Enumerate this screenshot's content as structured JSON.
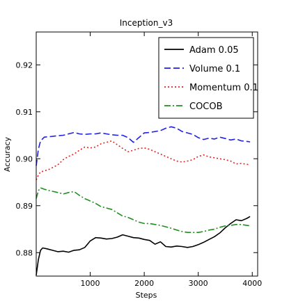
{
  "chart_data": {
    "type": "line",
    "title": "Inception_v3",
    "xlabel": "Steps",
    "ylabel": "Accuracy",
    "xlim": [
      0,
      4100
    ],
    "ylim": [
      0.875,
      0.927
    ],
    "x_ticks": [
      1000,
      2000,
      3000,
      4000
    ],
    "x_tick_labels": [
      "1000",
      "2000",
      "3000",
      "4000"
    ],
    "y_ticks": [
      0.88,
      0.89,
      0.9,
      0.91,
      0.92
    ],
    "y_tick_labels": [
      "0.88",
      "0.89",
      "0.90",
      "0.91",
      "0.92"
    ],
    "grid": false,
    "legend_position": "top-right",
    "series": [
      {
        "name": "Adam 0.05",
        "color": "#000000",
        "style": "solid",
        "x": [
          0,
          40,
          80,
          120,
          200,
          300,
          400,
          500,
          600,
          700,
          800,
          900,
          1000,
          1100,
          1200,
          1300,
          1400,
          1500,
          1600,
          1700,
          1800,
          1900,
          2000,
          2100,
          2200,
          2300,
          2400,
          2500,
          2600,
          2700,
          2800,
          2900,
          3000,
          3100,
          3200,
          3300,
          3400,
          3500,
          3600,
          3700,
          3800,
          3900,
          3960
        ],
        "y": [
          0.8752,
          0.8785,
          0.8805,
          0.881,
          0.8808,
          0.8805,
          0.8802,
          0.8803,
          0.8801,
          0.8805,
          0.8806,
          0.8811,
          0.8825,
          0.8832,
          0.8831,
          0.8829,
          0.883,
          0.8833,
          0.8838,
          0.8835,
          0.8832,
          0.8831,
          0.8828,
          0.8826,
          0.8818,
          0.8823,
          0.8813,
          0.8812,
          0.8814,
          0.8813,
          0.8811,
          0.8813,
          0.8817,
          0.8822,
          0.8828,
          0.8834,
          0.8842,
          0.8853,
          0.8862,
          0.887,
          0.8868,
          0.8873,
          0.8877
        ]
      },
      {
        "name": "Volume 0.1",
        "color": "#1f1fe6",
        "style": "dashed",
        "x": [
          0,
          40,
          80,
          150,
          250,
          400,
          500,
          600,
          700,
          800,
          900,
          1000,
          1100,
          1200,
          1300,
          1400,
          1500,
          1600,
          1700,
          1800,
          1900,
          2000,
          2100,
          2200,
          2300,
          2400,
          2500,
          2600,
          2700,
          2800,
          2900,
          3000,
          3100,
          3200,
          3300,
          3400,
          3500,
          3600,
          3700,
          3800,
          3900,
          3960
        ],
        "y": [
          0.8985,
          0.902,
          0.9038,
          0.9046,
          0.9047,
          0.9049,
          0.905,
          0.9053,
          0.9056,
          0.9053,
          0.9052,
          0.9053,
          0.9053,
          0.9055,
          0.9053,
          0.9051,
          0.905,
          0.905,
          0.9045,
          0.9035,
          0.9045,
          0.9055,
          0.9056,
          0.9058,
          0.906,
          0.9065,
          0.9068,
          0.9065,
          0.9058,
          0.9055,
          0.9052,
          0.9045,
          0.9041,
          0.9044,
          0.9042,
          0.9046,
          0.9043,
          0.904,
          0.9042,
          0.9038,
          0.9037,
          0.9036
        ]
      },
      {
        "name": "Momentum 0.1",
        "color": "#e61f1f",
        "style": "dotted",
        "x": [
          0,
          40,
          80,
          150,
          250,
          400,
          500,
          600,
          700,
          800,
          900,
          1000,
          1100,
          1200,
          1300,
          1400,
          1500,
          1600,
          1700,
          1800,
          1900,
          2000,
          2100,
          2200,
          2300,
          2400,
          2500,
          2600,
          2700,
          2800,
          2900,
          3000,
          3100,
          3200,
          3300,
          3400,
          3500,
          3600,
          3700,
          3800,
          3900,
          3960
        ],
        "y": [
          0.8955,
          0.8965,
          0.8972,
          0.8974,
          0.8978,
          0.8987,
          0.8998,
          0.9005,
          0.901,
          0.9018,
          0.9025,
          0.9023,
          0.9025,
          0.9032,
          0.9035,
          0.9038,
          0.903,
          0.9022,
          0.9015,
          0.9018,
          0.9022,
          0.9023,
          0.902,
          0.9015,
          0.901,
          0.9005,
          0.9,
          0.8995,
          0.8993,
          0.8995,
          0.8998,
          0.9005,
          0.9008,
          0.9004,
          0.9002,
          0.9,
          0.8998,
          0.8995,
          0.8989,
          0.899,
          0.8988,
          0.8987
        ]
      },
      {
        "name": "COCOB",
        "color": "#1f8f1f",
        "style": "dashdot",
        "x": [
          0,
          40,
          80,
          150,
          250,
          400,
          500,
          600,
          700,
          800,
          900,
          1000,
          1100,
          1200,
          1300,
          1400,
          1500,
          1600,
          1700,
          1800,
          1900,
          2000,
          2100,
          2200,
          2300,
          2400,
          2500,
          2600,
          2700,
          2800,
          2900,
          3000,
          3100,
          3200,
          3300,
          3400,
          3500,
          3600,
          3700,
          3800,
          3900,
          3960
        ],
        "y": [
          0.8915,
          0.8932,
          0.8938,
          0.8935,
          0.8932,
          0.8928,
          0.8925,
          0.8928,
          0.893,
          0.8922,
          0.8915,
          0.891,
          0.8905,
          0.8898,
          0.8895,
          0.8892,
          0.8885,
          0.8878,
          0.8875,
          0.887,
          0.8865,
          0.8862,
          0.8862,
          0.886,
          0.8858,
          0.8855,
          0.8852,
          0.8848,
          0.8845,
          0.8843,
          0.8843,
          0.8843,
          0.8845,
          0.8848,
          0.885,
          0.8854,
          0.8857,
          0.8858,
          0.886,
          0.886,
          0.8858,
          0.8857
        ]
      }
    ]
  }
}
